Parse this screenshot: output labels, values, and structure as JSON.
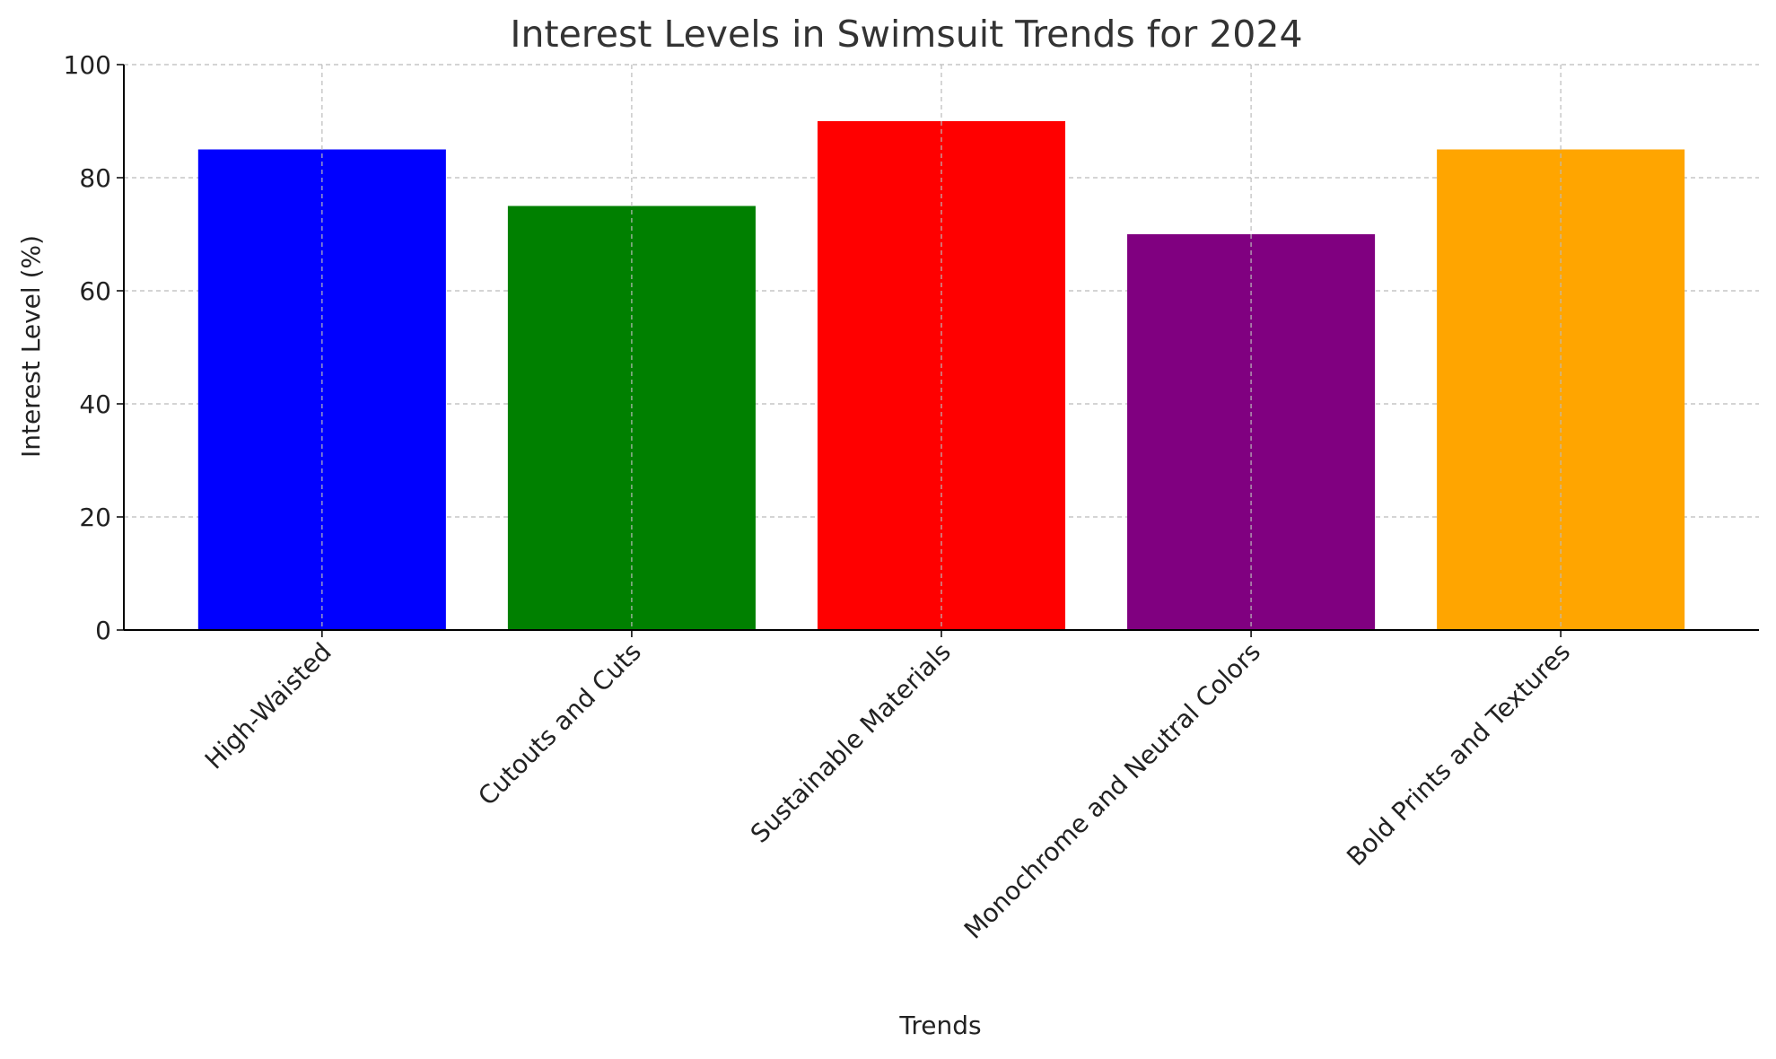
{
  "chart_data": {
    "type": "bar",
    "title": "Interest Levels in Swimsuit Trends for 2024",
    "x_label": "Trends",
    "y_label": "Interest Level (%)",
    "categories": [
      "High-Waisted",
      "Cutouts and Cuts",
      "Sustainable Materials",
      "Monochrome and Neutral Colors",
      "Bold Prints and Textures"
    ],
    "values": [
      85,
      75,
      90,
      70,
      85
    ],
    "colors": [
      "blue",
      "green",
      "red",
      "purple",
      "orange"
    ],
    "ylim": [
      0,
      100
    ],
    "yticks": [
      0,
      20,
      40,
      60,
      80,
      100
    ],
    "grid": true
  }
}
